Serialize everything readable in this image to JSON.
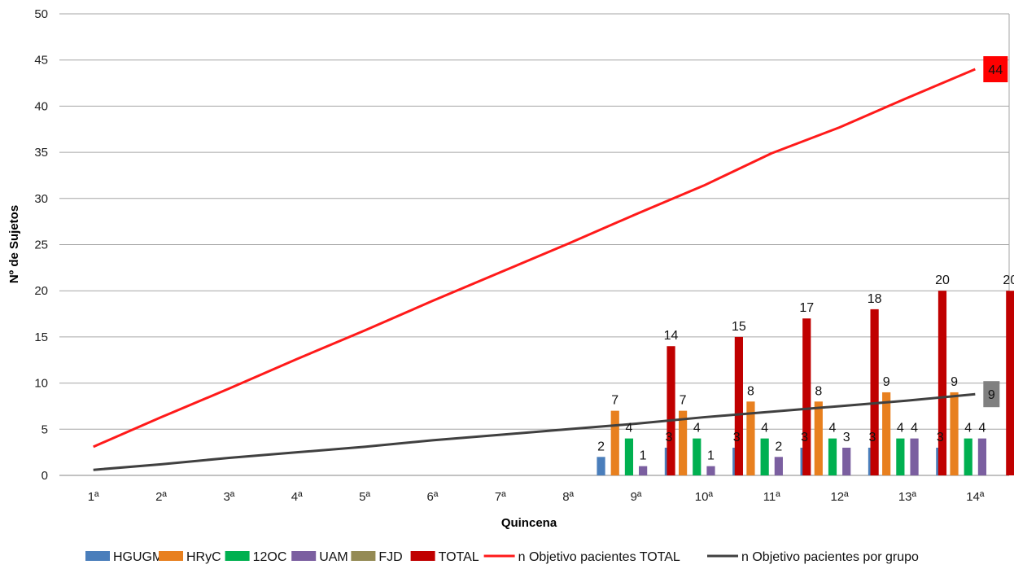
{
  "chart_data": {
    "type": "bar",
    "title": "",
    "xlabel": "Quincena",
    "ylabel": "Nº de Sujetos",
    "ylim": [
      0,
      50
    ],
    "yticks": [
      0,
      5,
      10,
      15,
      20,
      25,
      30,
      35,
      40,
      45,
      50
    ],
    "grid": true,
    "legend_position": "bottom",
    "categories": [
      "1ª",
      "2ª",
      "3ª",
      "4ª",
      "5ª",
      "6ª",
      "7ª",
      "8ª",
      "9ª",
      "10ª",
      "11ª",
      "12ª",
      "13ª",
      "14ª"
    ],
    "series": [
      {
        "name": "HGUGM",
        "kind": "bar",
        "color": "#4a7ebb",
        "values": [
          null,
          null,
          null,
          null,
          null,
          null,
          null,
          null,
          2,
          3,
          3,
          3,
          3,
          3
        ]
      },
      {
        "name": "HRyC",
        "kind": "bar",
        "color": "#e8801f",
        "values": [
          null,
          null,
          null,
          null,
          null,
          null,
          null,
          null,
          7,
          7,
          8,
          8,
          9,
          9
        ]
      },
      {
        "name": "12OC",
        "kind": "bar",
        "color": "#00b050",
        "values": [
          null,
          null,
          null,
          null,
          null,
          null,
          null,
          null,
          4,
          4,
          4,
          4,
          4,
          4
        ]
      },
      {
        "name": "UAM",
        "kind": "bar",
        "color": "#7b5fa0",
        "values": [
          null,
          null,
          null,
          null,
          null,
          null,
          null,
          null,
          1,
          1,
          2,
          3,
          4,
          4
        ]
      },
      {
        "name": "FJD",
        "kind": "bar",
        "color": "#948a54",
        "values": [
          null,
          null,
          null,
          null,
          null,
          null,
          null,
          null,
          null,
          null,
          null,
          null,
          null,
          null
        ]
      },
      {
        "name": "TOTAL",
        "kind": "bar",
        "color": "#c00000",
        "values": [
          null,
          null,
          null,
          null,
          null,
          null,
          null,
          null,
          14,
          15,
          17,
          18,
          20,
          20
        ]
      },
      {
        "name": "n Objetivo pacientes TOTAL",
        "kind": "line",
        "color": "#ff1a1a",
        "values": [
          3.1,
          6.3,
          9.4,
          12.6,
          15.7,
          18.9,
          22.0,
          25.1,
          28.3,
          31.4,
          34.9,
          37.7,
          40.9,
          44.0
        ],
        "end_label": "44",
        "end_label_color": "#ff0000"
      },
      {
        "name": "n Objetivo pacientes por grupo",
        "kind": "line",
        "color": "#404040",
        "values": [
          0.6,
          1.2,
          1.9,
          2.5,
          3.1,
          3.8,
          4.4,
          5.0,
          5.6,
          6.3,
          6.9,
          7.5,
          8.1,
          8.8
        ],
        "end_label": "9",
        "end_label_color": "#808080"
      }
    ]
  }
}
